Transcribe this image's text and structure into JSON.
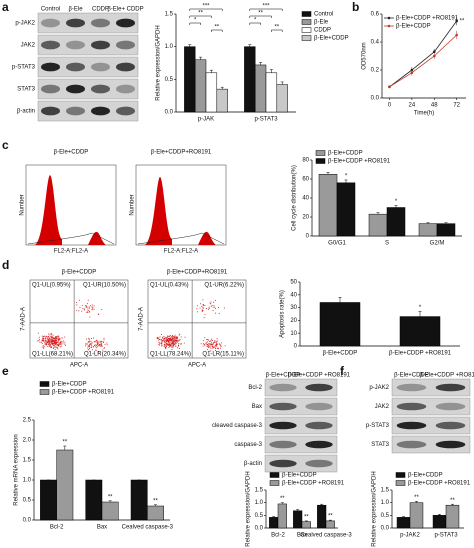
{
  "panel_labels": [
    "a",
    "b",
    "c",
    "d",
    "e",
    "f"
  ],
  "blot_a": {
    "lanes": [
      "Control",
      "β-Ele",
      "CDDP",
      "β-Ele+ CDDP"
    ],
    "rows": [
      "p-JAK2",
      "JAK2",
      "p-STAT3",
      "STAT3",
      "β-actin"
    ]
  },
  "flow_c": {
    "titles": [
      "β-Ele+CDDP",
      "β-Ele+CDDP+RO8191"
    ],
    "xlabel": "FL2-A:FL2-A",
    "ylabel": "Number"
  },
  "flow_d": {
    "titles": [
      "β-Ele+CDDP",
      "β-Ele+CDDP+RO8191"
    ],
    "xlabel": "APC-A",
    "ylabel": "7-AAD-A",
    "quadrants": [
      [
        "Q1-UL(0.95%)",
        "Q1-UR(10.50%)",
        "Q1-LL(68.21%)",
        "Q1-LR(20.34%)"
      ],
      [
        "Q1-UL(0.43%)",
        "Q1-UR(6.22%)",
        "Q1-LL(78.24%)",
        "Q1-LR(15.11%)"
      ]
    ]
  },
  "blot_e": {
    "lanes": [
      "β-Ele+CDDP",
      "β-Ele+CDDP +RO8191"
    ],
    "rows": [
      "Bcl-2",
      "Bax",
      "cleaved caspase-3",
      "caspase-3",
      "β-actin"
    ]
  },
  "blot_f": {
    "lanes": [
      "β-Ele+CDDP",
      "β-Ele+CDDP +RO8191"
    ],
    "rows": [
      "p-JAK2",
      "JAK2",
      "p-STAT3",
      "STAT3"
    ]
  },
  "chart_data": [
    {
      "type": "bar",
      "ylabel": "Relative expression/GAPDH",
      "categories": [
        "p-JAK",
        "p-STAT3"
      ],
      "series": [
        {
          "name": "Control",
          "color": "#111111",
          "values": [
            1.0,
            1.0
          ],
          "errors": [
            0.03,
            0.03
          ]
        },
        {
          "name": "β-Ele",
          "color": "#9a9a9a",
          "values": [
            0.8,
            0.72
          ],
          "errors": [
            0.04,
            0.04
          ]
        },
        {
          "name": "CDDP",
          "color": "#ffffff",
          "values": [
            0.6,
            0.6
          ],
          "errors": [
            0.04,
            0.05
          ]
        },
        {
          "name": "β-Ele+CDDP",
          "color": "#c8c8c8",
          "values": [
            0.35,
            0.42
          ],
          "errors": [
            0.03,
            0.04
          ]
        }
      ],
      "ylim": [
        0,
        1.5
      ],
      "yticks": [
        {
          "value": 0,
          "label": "0.0"
        },
        0.5,
        {
          "value": 1,
          "label": "1.0"
        },
        1.5
      ],
      "annotations": [
        "***",
        "**",
        "*",
        "**",
        "***",
        "**",
        "*",
        "**"
      ],
      "legend": "right"
    },
    {
      "type": "line",
      "ylabel": "OD570nm",
      "xlabel": "Time(h)",
      "x": [
        0,
        24,
        48,
        72
      ],
      "series": [
        {
          "name": "β-Ele+CDDP +RO8191",
          "color": "#222222",
          "values": [
            0.08,
            0.2,
            0.33,
            0.55
          ],
          "errors": [
            0.01,
            0.02,
            0.02,
            0.03
          ]
        },
        {
          "name": "β-Ele+CDDP",
          "color": "#c0392b",
          "values": [
            0.08,
            0.18,
            0.3,
            0.45
          ],
          "errors": [
            0.01,
            0.02,
            0.02,
            0.03
          ]
        }
      ],
      "xlim": [
        -8,
        82
      ],
      "xticks": [
        0,
        24,
        48,
        72
      ],
      "ylim": [
        0,
        0.6
      ],
      "yticks": [
        {
          "value": 0,
          "label": "0.0"
        },
        0.2,
        0.4,
        0.6
      ],
      "annotations": [
        "**"
      ],
      "legend": "top"
    },
    {
      "type": "bar",
      "ylabel": "Cell cycle distribution(%)",
      "categories": [
        "G0/G1",
        "S",
        "G2/M"
      ],
      "series": [
        {
          "name": "β-Ele+CDDP",
          "color": "#9a9a9a",
          "values": [
            65,
            23,
            13
          ],
          "errors": [
            2,
            1.5,
            1
          ]
        },
        {
          "name": "β-Ele+CDDP +RO8191",
          "color": "#111111",
          "values": [
            56,
            30,
            13
          ],
          "errors": [
            3,
            2,
            1
          ]
        }
      ],
      "ylim": [
        0,
        80
      ],
      "yticks": [
        0,
        20,
        40,
        60,
        80
      ],
      "annotations": [
        "*",
        "*"
      ],
      "legend": "top"
    },
    {
      "type": "bar",
      "ylabel": "Apoptosis rate(%)",
      "categories": [
        "β-Ele+CDDP",
        "β-Ele+CDDP +RO8191"
      ],
      "series": [
        {
          "name": null,
          "color": "#111111",
          "values": [
            34,
            23
          ],
          "errors": [
            4,
            4
          ]
        }
      ],
      "ylim": [
        0,
        50
      ],
      "yticks": [
        0,
        10,
        20,
        30,
        40,
        50
      ],
      "annotations": [
        "*"
      ]
    },
    {
      "type": "bar",
      "ylabel": "Relative mRNA expression",
      "categories": [
        "Bcl-2",
        "Bax",
        "Cealved caspase-3"
      ],
      "series": [
        {
          "name": "β-Ele+CDDP",
          "color": "#111111",
          "values": [
            1,
            1,
            1
          ],
          "errors": [
            0,
            0,
            0
          ]
        },
        {
          "name": "β-Ele+CDDP +RO8191",
          "color": "#9a9a9a",
          "values": [
            1.75,
            0.45,
            0.35
          ],
          "errors": [
            0.1,
            0.03,
            0.03
          ]
        }
      ],
      "ylim": [
        0,
        2.5
      ],
      "yticks": [
        {
          "value": 0,
          "label": "0.0"
        },
        0.5,
        {
          "value": 1,
          "label": "1.0"
        },
        1.5,
        {
          "value": 2,
          "label": "2.0"
        },
        2.5
      ],
      "annotations": [
        "**",
        "**",
        "**"
      ],
      "legend": "top"
    },
    {
      "type": "bar",
      "ylabel": "Relative expression/GAPDH",
      "categories": [
        "Bcl-2",
        "Bax",
        "Cealved caspase-3"
      ],
      "series": [
        {
          "name": "β-Ele+CDDP",
          "color": "#111111",
          "values": [
            0.42,
            0.68,
            0.9
          ],
          "errors": [
            0.03,
            0.05,
            0.04
          ]
        },
        {
          "name": "β-Ele+CDDP +RO8191",
          "color": "#9a9a9a",
          "values": [
            0.95,
            0.25,
            0.28
          ],
          "errors": [
            0.05,
            0.03,
            0.03
          ]
        }
      ],
      "ylim": [
        0,
        1.5
      ],
      "yticks": [
        {
          "value": 0,
          "label": "0.0"
        },
        0.5,
        {
          "value": 1,
          "label": "1.0"
        },
        1.5
      ],
      "annotations": [
        "**",
        "**",
        "**"
      ],
      "legend": "top"
    },
    {
      "type": "bar",
      "ylabel": "Relative expression/GAPDH",
      "categories": [
        "p-JAK2",
        "p-STAT3"
      ],
      "series": [
        {
          "name": "β-Ele+CDDP",
          "color": "#111111",
          "values": [
            0.42,
            0.5
          ],
          "errors": [
            0.03,
            0.04
          ]
        },
        {
          "name": "β-Ele+CDDP +RO8191",
          "color": "#9a9a9a",
          "values": [
            1.0,
            0.9
          ],
          "errors": [
            0.05,
            0.04
          ]
        }
      ],
      "ylim": [
        0,
        1.5
      ],
      "yticks": [
        {
          "value": 0,
          "label": "0.0"
        },
        0.5,
        {
          "value": 1,
          "label": "1.0"
        },
        1.5
      ],
      "annotations": [
        "**",
        "**"
      ],
      "legend": "top"
    }
  ]
}
